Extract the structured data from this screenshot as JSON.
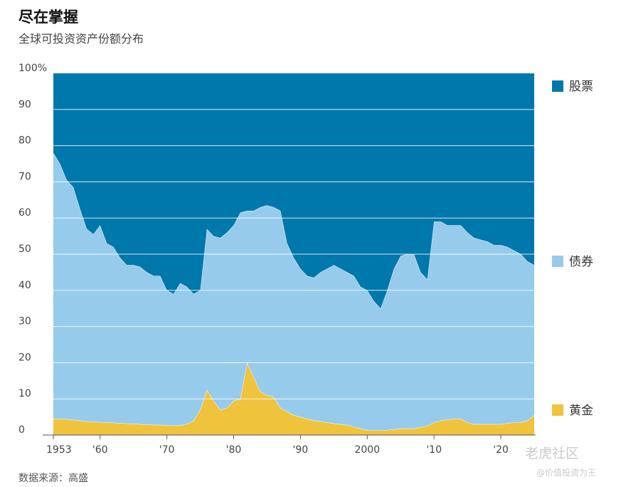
{
  "title": "尽在掌握",
  "subtitle": "全球可投资资产份额分布",
  "source": "数据来源：高盛",
  "watermark": {
    "brand": "老虎社区",
    "handle": "@价值投资为王"
  },
  "colors": {
    "stocks": "#0078ab",
    "bonds": "#96cbec",
    "gold": "#f0c33c",
    "grid": "#ffffff",
    "axis": "#555555"
  },
  "chart_data": {
    "type": "area",
    "stacked": true,
    "title": "尽在掌握",
    "subtitle": "全球可投资资产份额分布",
    "xlim": [
      1953,
      2025
    ],
    "ylim": [
      0,
      100
    ],
    "y_ticks": [
      0,
      10,
      20,
      30,
      40,
      50,
      60,
      70,
      80,
      90,
      100
    ],
    "y_tick_labels": [
      "0",
      "10",
      "20",
      "30",
      "40",
      "50",
      "60",
      "70",
      "80",
      "90",
      "100%"
    ],
    "x_ticks": [
      1953,
      1960,
      1970,
      1980,
      1990,
      2000,
      2010,
      2020
    ],
    "x_tick_labels": [
      "1953",
      "'60",
      "'70",
      "'80",
      "'90",
      "2000",
      "'10",
      "'20"
    ],
    "grid": true,
    "legend_position": "right",
    "x": [
      1953,
      1954,
      1955,
      1956,
      1957,
      1958,
      1959,
      1960,
      1961,
      1962,
      1963,
      1964,
      1965,
      1966,
      1967,
      1968,
      1969,
      1970,
      1971,
      1972,
      1973,
      1974,
      1975,
      1976,
      1977,
      1978,
      1979,
      1980,
      1981,
      1982,
      1983,
      1984,
      1985,
      1986,
      1987,
      1988,
      1989,
      1990,
      1991,
      1992,
      1993,
      1994,
      1995,
      1996,
      1997,
      1998,
      1999,
      2000,
      2001,
      2002,
      2003,
      2004,
      2005,
      2006,
      2007,
      2008,
      2009,
      2010,
      2011,
      2012,
      2013,
      2014,
      2015,
      2016,
      2017,
      2018,
      2019,
      2020,
      2021,
      2022,
      2023,
      2024,
      2025
    ],
    "series": [
      {
        "name": "黄金",
        "values": [
          4.5,
          4.5,
          4.4,
          4.2,
          4.0,
          3.8,
          3.7,
          3.6,
          3.5,
          3.4,
          3.3,
          3.2,
          3.1,
          3.0,
          2.9,
          2.8,
          2.8,
          2.7,
          2.6,
          2.7,
          3.0,
          4.0,
          7.0,
          12.5,
          9.5,
          7.0,
          7.5,
          9.5,
          10.0,
          20.0,
          16.0,
          12.0,
          11.0,
          10.5,
          7.5,
          6.5,
          5.5,
          5.0,
          4.5,
          4.0,
          3.8,
          3.5,
          3.2,
          3.0,
          2.8,
          2.2,
          1.8,
          1.4,
          1.3,
          1.3,
          1.4,
          1.6,
          1.8,
          1.8,
          1.8,
          2.2,
          2.5,
          3.5,
          4.0,
          4.3,
          4.5,
          4.5,
          3.5,
          3.0,
          3.0,
          3.0,
          3.0,
          3.0,
          3.3,
          3.5,
          3.5,
          4.0,
          5.5
        ]
      },
      {
        "name": "债券",
        "values": [
          73.5,
          70.5,
          66.1,
          64.3,
          58.5,
          53.2,
          51.8,
          54.4,
          49.5,
          48.6,
          45.7,
          43.8,
          43.9,
          43.5,
          42.1,
          41.2,
          41.2,
          37.3,
          36.4,
          39.3,
          38.0,
          35.0,
          33.0,
          44.5,
          45.5,
          47.5,
          48.5,
          48.5,
          51.5,
          42.0,
          46.0,
          51.0,
          52.5,
          52.5,
          54.5,
          46.5,
          43.5,
          41.0,
          39.5,
          39.5,
          41.2,
          42.5,
          43.8,
          43.0,
          42.2,
          41.8,
          39.2,
          38.6,
          35.7,
          33.7,
          38.6,
          44.4,
          47.7,
          48.2,
          48.2,
          42.8,
          40.5,
          55.5,
          55.0,
          53.7,
          53.5,
          53.5,
          52.5,
          51.5,
          51.0,
          50.5,
          49.5,
          49.5,
          48.7,
          47.5,
          46.5,
          44.0,
          41.5
        ]
      },
      {
        "name": "股票",
        "values": [
          22.0,
          25.0,
          29.5,
          31.5,
          37.5,
          43.0,
          44.5,
          42.0,
          47.0,
          48.0,
          51.0,
          53.0,
          53.0,
          53.5,
          55.0,
          56.0,
          56.0,
          60.0,
          61.0,
          58.0,
          59.0,
          61.0,
          60.0,
          43.0,
          45.0,
          45.5,
          44.0,
          42.0,
          38.5,
          38.0,
          38.0,
          37.0,
          36.5,
          37.0,
          38.0,
          47.0,
          51.0,
          54.0,
          56.0,
          56.5,
          55.0,
          54.0,
          53.0,
          54.0,
          55.0,
          56.0,
          59.0,
          60.0,
          63.0,
          65.0,
          60.0,
          54.0,
          50.5,
          50.0,
          50.0,
          55.0,
          57.0,
          41.0,
          41.0,
          42.0,
          42.0,
          42.0,
          44.0,
          45.5,
          46.0,
          46.5,
          47.5,
          47.5,
          48.0,
          49.0,
          50.0,
          52.0,
          53.0
        ]
      }
    ]
  }
}
